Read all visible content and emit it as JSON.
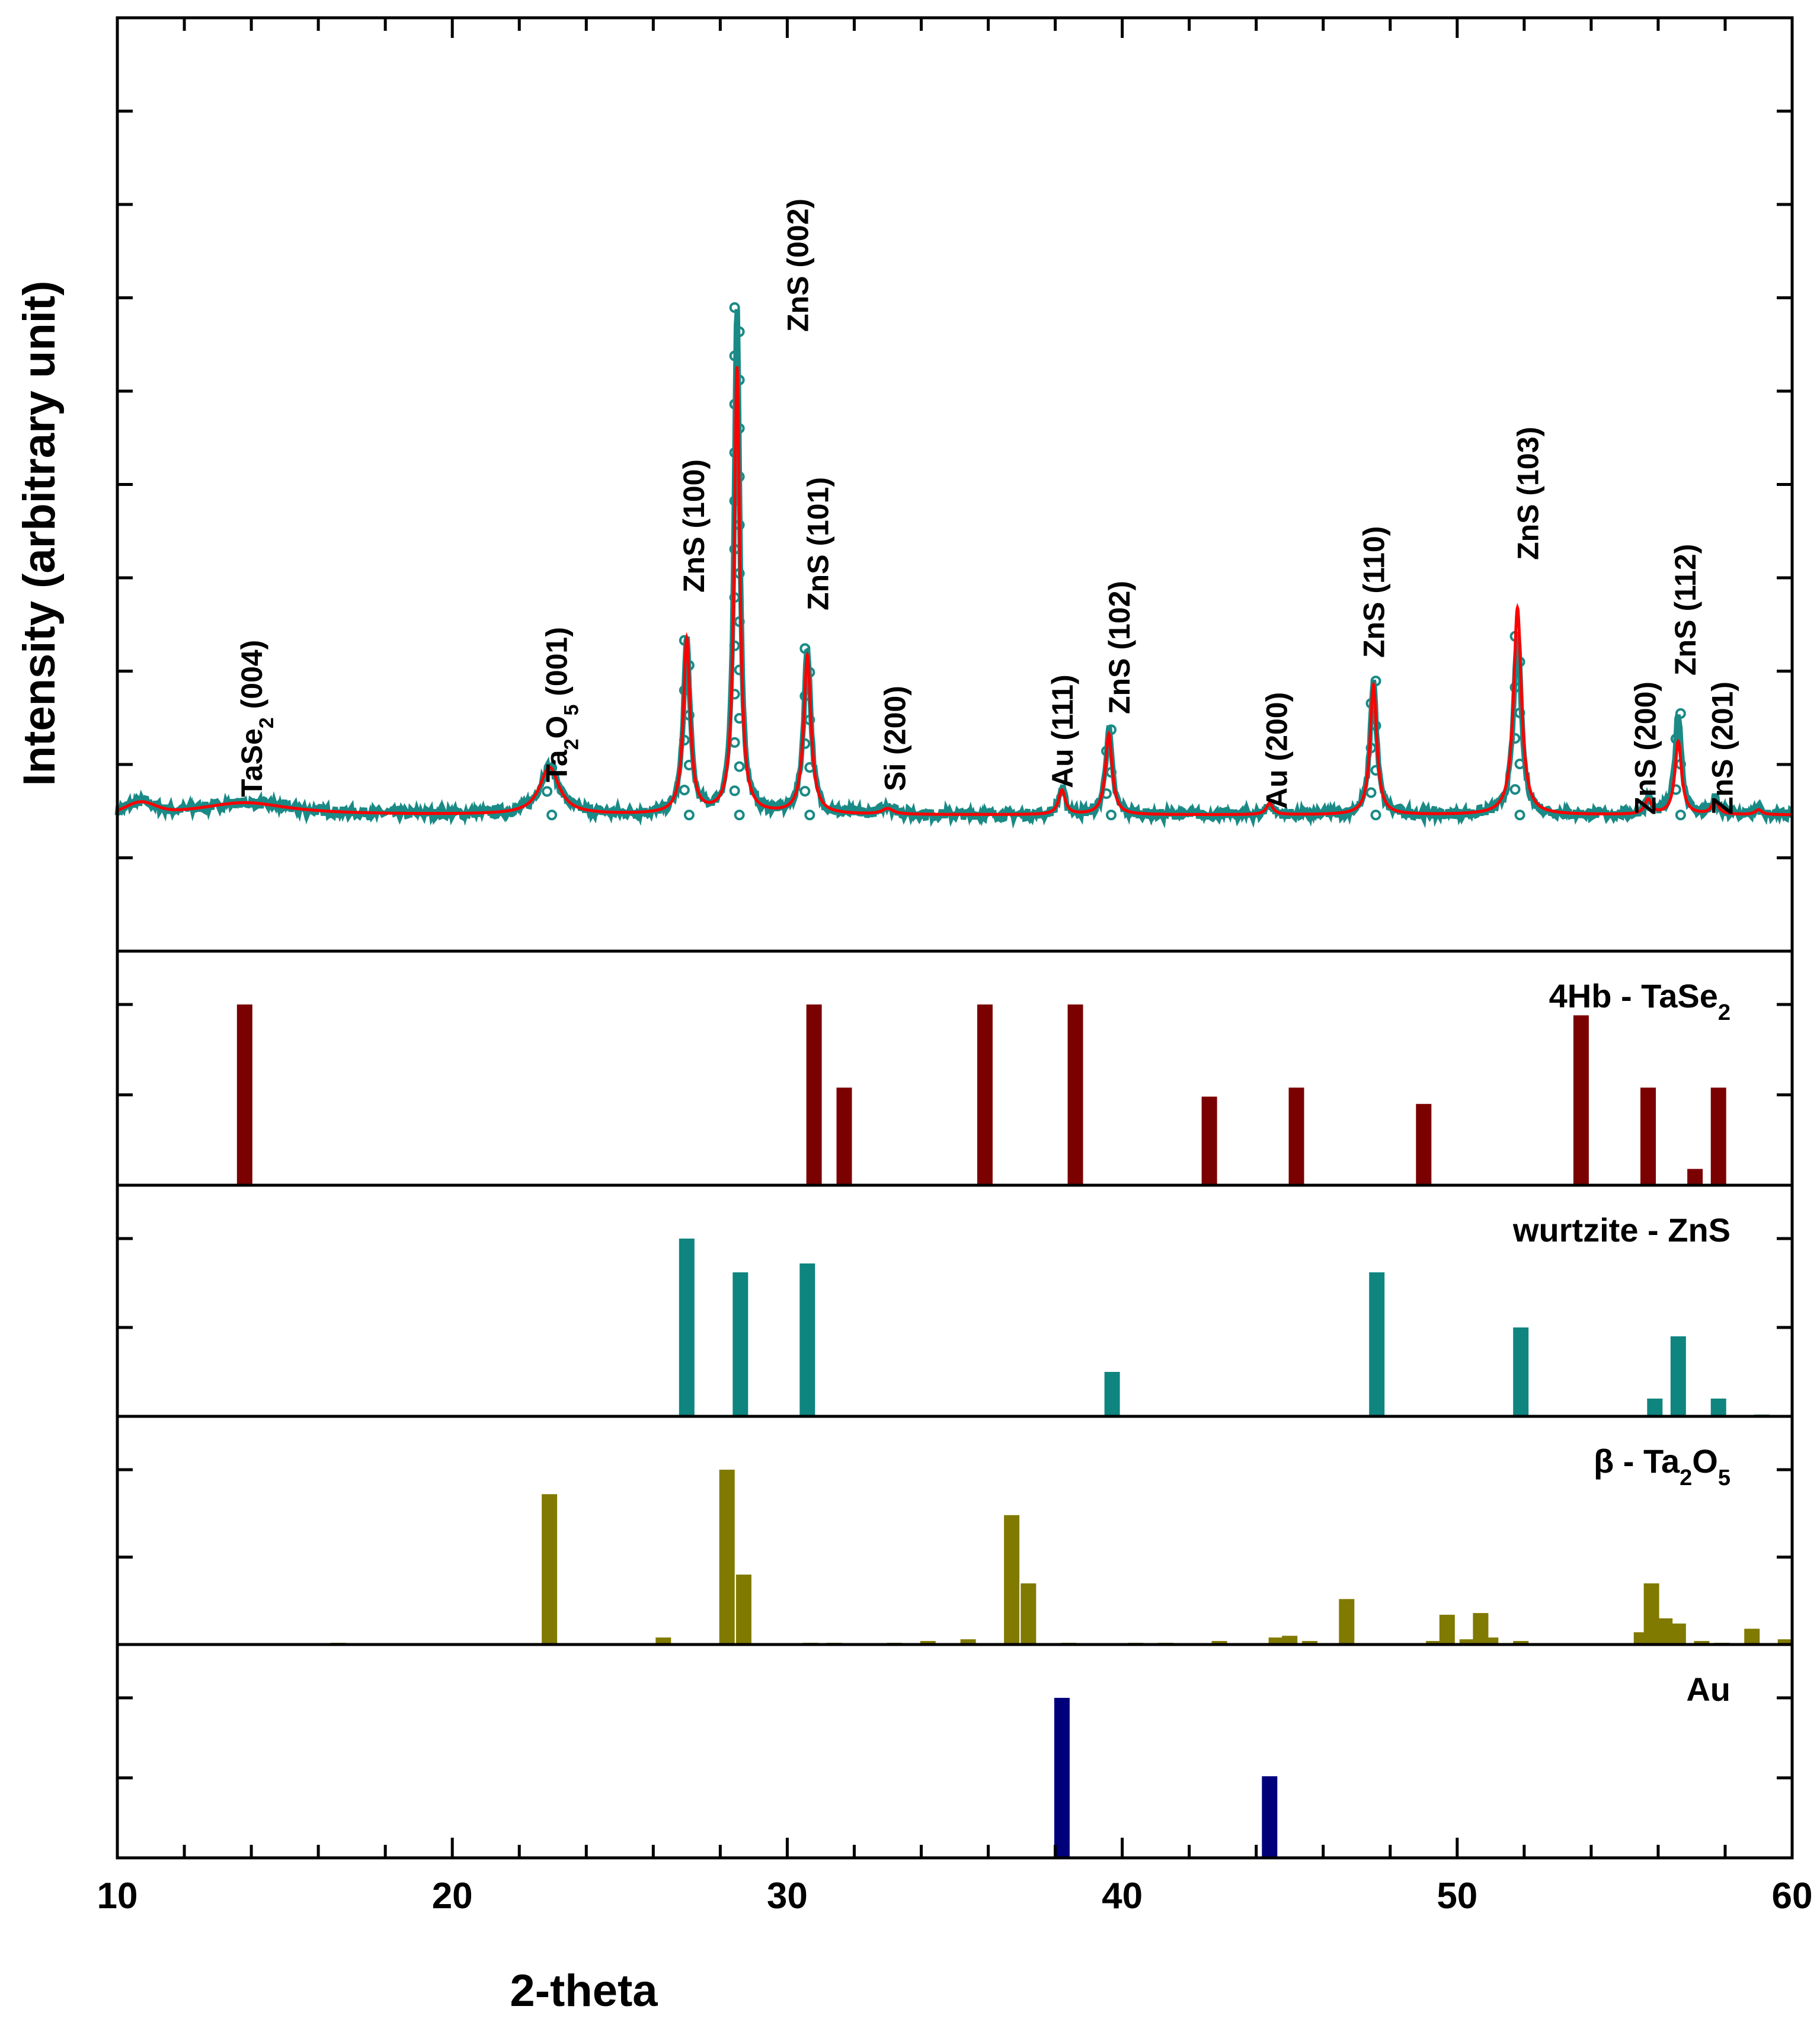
{
  "chart_data": {
    "type": "xrd-pattern",
    "xlabel": "2-theta",
    "ylabel": "Intensity (arbitrary unit)",
    "xlim": [
      10,
      60
    ],
    "xticks": [
      10,
      20,
      30,
      40,
      50,
      60
    ],
    "colors": {
      "observed": "#1a8a86",
      "fit": "#ff0000",
      "tase2": "#7b0000",
      "zns": "#0f8580",
      "ta2o5": "#807a00",
      "au": "#00007b"
    },
    "pattern": {
      "ylim": [
        0,
        100
      ],
      "baseline": 4,
      "peaks": [
        {
          "x": 13.8,
          "obs": 1.5,
          "fit": 1.5,
          "w": 1.6
        },
        {
          "x": 22.9,
          "obs": 5.8,
          "fit": 5.8,
          "w": 0.35
        },
        {
          "x": 27.0,
          "obs": 21.5,
          "fit": 21.5,
          "w": 0.12
        },
        {
          "x": 28.5,
          "obs": 62.5,
          "fit": 55.0,
          "w": 0.1
        },
        {
          "x": 30.6,
          "obs": 20.5,
          "fit": 19.5,
          "w": 0.13
        },
        {
          "x": 33.0,
          "obs": 1.2,
          "fit": 0.7,
          "w": 0.2
        },
        {
          "x": 38.2,
          "obs": 3.2,
          "fit": 3.0,
          "w": 0.12
        },
        {
          "x": 39.6,
          "obs": 10.5,
          "fit": 10.0,
          "w": 0.12
        },
        {
          "x": 44.4,
          "obs": 1.4,
          "fit": 1.4,
          "w": 0.12
        },
        {
          "x": 47.5,
          "obs": 16.5,
          "fit": 16.0,
          "w": 0.12
        },
        {
          "x": 51.8,
          "obs": 22.0,
          "fit": 25.5,
          "w": 0.14
        },
        {
          "x": 55.7,
          "obs": 1.8,
          "fit": 1.8,
          "w": 0.12
        },
        {
          "x": 56.6,
          "obs": 12.5,
          "fit": 9.0,
          "w": 0.12
        },
        {
          "x": 57.7,
          "obs": 1.7,
          "fit": 1.7,
          "w": 0.12
        },
        {
          "x": 59.0,
          "obs": 0.6,
          "fit": 0.6,
          "w": 0.12
        }
      ],
      "annotations": [
        {
          "text": "TaSe",
          "sub": "2",
          "post": " (004)",
          "x": 14.0
        },
        {
          "text": "Ta",
          "sub": "2",
          "mid": "O",
          "sub2": "5",
          "post": " (001)",
          "x": 23.1
        },
        {
          "text": "ZnS (100)",
          "x": 27.2
        },
        {
          "text": "ZnS (002)",
          "x": 30.3
        },
        {
          "text": "ZnS (101)",
          "x": 30.9
        },
        {
          "text": "Si (200)",
          "x": 33.2
        },
        {
          "text": "Au (111)",
          "x": 38.2
        },
        {
          "text": "ZnS (102)",
          "x": 39.9
        },
        {
          "text": "Au (200)",
          "x": 44.6
        },
        {
          "text": "ZnS (110)",
          "x": 47.5
        },
        {
          "text": "ZnS (103)",
          "x": 52.1
        },
        {
          "text": "ZnS (200)",
          "x": 55.6
        },
        {
          "text": "ZnS (112)",
          "x": 56.8
        },
        {
          "text": "ZnS (201)",
          "x": 57.9
        }
      ]
    },
    "references": [
      {
        "name_main": "4Hb - TaSe",
        "name_sub": "2",
        "color_key": "tase2",
        "bars": [
          {
            "x": 13.8,
            "y": 100
          },
          {
            "x": 30.8,
            "y": 100
          },
          {
            "x": 31.7,
            "y": 54
          },
          {
            "x": 35.9,
            "y": 100
          },
          {
            "x": 38.6,
            "y": 100
          },
          {
            "x": 42.6,
            "y": 49
          },
          {
            "x": 45.2,
            "y": 54
          },
          {
            "x": 49.0,
            "y": 45
          },
          {
            "x": 53.7,
            "y": 94
          },
          {
            "x": 55.7,
            "y": 54
          },
          {
            "x": 57.1,
            "y": 9
          },
          {
            "x": 57.8,
            "y": 54
          }
        ]
      },
      {
        "name_main": "wurtzite - ZnS",
        "color_key": "zns",
        "bars": [
          {
            "x": 27.0,
            "y": 100
          },
          {
            "x": 28.6,
            "y": 81
          },
          {
            "x": 30.6,
            "y": 86
          },
          {
            "x": 39.7,
            "y": 25
          },
          {
            "x": 47.6,
            "y": 81
          },
          {
            "x": 51.9,
            "y": 50
          },
          {
            "x": 55.9,
            "y": 10
          },
          {
            "x": 56.6,
            "y": 45
          },
          {
            "x": 57.8,
            "y": 10
          },
          {
            "x": 59.1,
            "y": 1
          }
        ]
      },
      {
        "name_main": "β - Ta",
        "name_sub": "2",
        "name_mid": "O",
        "name_sub2": "5",
        "color_key": "ta2o5",
        "bars": [
          {
            "x": 16.6,
            "y": 1
          },
          {
            "x": 22.9,
            "y": 86
          },
          {
            "x": 26.3,
            "y": 4
          },
          {
            "x": 28.2,
            "y": 100
          },
          {
            "x": 28.7,
            "y": 40
          },
          {
            "x": 30.7,
            "y": 1
          },
          {
            "x": 31.4,
            "y": 1
          },
          {
            "x": 33.2,
            "y": 1
          },
          {
            "x": 34.2,
            "y": 2
          },
          {
            "x": 35.4,
            "y": 3
          },
          {
            "x": 36.7,
            "y": 74
          },
          {
            "x": 37.2,
            "y": 35
          },
          {
            "x": 38.4,
            "y": 1
          },
          {
            "x": 40.4,
            "y": 1
          },
          {
            "x": 41.3,
            "y": 1
          },
          {
            "x": 42.9,
            "y": 2
          },
          {
            "x": 44.6,
            "y": 4
          },
          {
            "x": 45.0,
            "y": 5
          },
          {
            "x": 45.6,
            "y": 2
          },
          {
            "x": 46.7,
            "y": 26
          },
          {
            "x": 49.3,
            "y": 2
          },
          {
            "x": 49.7,
            "y": 17
          },
          {
            "x": 50.3,
            "y": 3
          },
          {
            "x": 50.7,
            "y": 18
          },
          {
            "x": 51.0,
            "y": 4
          },
          {
            "x": 51.9,
            "y": 2
          },
          {
            "x": 55.5,
            "y": 7
          },
          {
            "x": 55.8,
            "y": 35
          },
          {
            "x": 56.2,
            "y": 15
          },
          {
            "x": 56.6,
            "y": 12
          },
          {
            "x": 57.3,
            "y": 2
          },
          {
            "x": 57.9,
            "y": 1
          },
          {
            "x": 58.8,
            "y": 9
          },
          {
            "x": 59.8,
            "y": 3
          }
        ]
      },
      {
        "name_main": "Au",
        "color_key": "au",
        "bars": [
          {
            "x": 38.2,
            "y": 100
          },
          {
            "x": 44.4,
            "y": 51
          }
        ]
      }
    ]
  }
}
